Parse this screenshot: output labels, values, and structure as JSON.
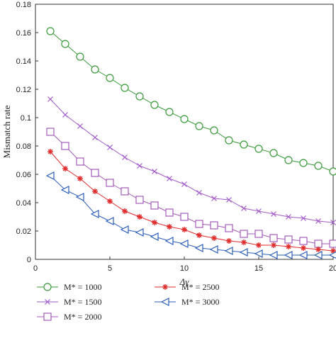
{
  "chart_data": {
    "type": "line",
    "xlabel": "Δγ",
    "ylabel": "Mismatch rate",
    "xlim": [
      0,
      20
    ],
    "ylim": [
      0,
      0.18
    ],
    "xticks": [
      0,
      5,
      10,
      15,
      20
    ],
    "yticks": [
      0,
      0.02,
      0.04,
      0.06,
      0.08,
      0.1,
      0.12,
      0.14,
      0.16,
      0.18
    ],
    "ytick_labels": [
      "0",
      "0.02",
      "0.04",
      "0.06",
      "0.08",
      "0.1",
      "0.12",
      "0.14",
      "0.16",
      "0.18"
    ],
    "grid": false,
    "legend_position": "bottom",
    "x": [
      1,
      2,
      3,
      4,
      5,
      6,
      7,
      8,
      9,
      10,
      11,
      12,
      13,
      14,
      15,
      16,
      17,
      18,
      19,
      20
    ],
    "series": [
      {
        "name": "M* = 1000",
        "marker": "circle",
        "color": "#3a9a3a",
        "values": [
          0.161,
          0.152,
          0.143,
          0.134,
          0.128,
          0.121,
          0.115,
          0.109,
          0.104,
          0.099,
          0.094,
          0.091,
          0.084,
          0.081,
          0.078,
          0.075,
          0.07,
          0.068,
          0.066,
          0.062
        ]
      },
      {
        "name": "M* = 1500",
        "marker": "x",
        "color": "#a25ac8",
        "values": [
          0.113,
          0.102,
          0.094,
          0.086,
          0.079,
          0.072,
          0.066,
          0.062,
          0.057,
          0.053,
          0.047,
          0.043,
          0.042,
          0.036,
          0.034,
          0.032,
          0.03,
          0.029,
          0.027,
          0.026
        ]
      },
      {
        "name": "M* = 2000",
        "marker": "square",
        "color": "#a45ab8",
        "values": [
          0.09,
          0.08,
          0.069,
          0.061,
          0.054,
          0.048,
          0.042,
          0.038,
          0.033,
          0.03,
          0.025,
          0.024,
          0.022,
          0.018,
          0.018,
          0.015,
          0.014,
          0.013,
          0.011,
          0.011
        ]
      },
      {
        "name": "M* = 2500",
        "marker": "star",
        "color": "#e02a2a",
        "values": [
          0.076,
          0.064,
          0.057,
          0.048,
          0.041,
          0.034,
          0.03,
          0.026,
          0.023,
          0.021,
          0.017,
          0.015,
          0.013,
          0.012,
          0.01,
          0.01,
          0.009,
          0.008,
          0.007,
          0.006
        ]
      },
      {
        "name": "M* = 3000",
        "marker": "triangle-left",
        "color": "#2b5fb8",
        "values": [
          0.059,
          0.049,
          0.044,
          0.032,
          0.027,
          0.021,
          0.019,
          0.016,
          0.013,
          0.011,
          0.008,
          0.007,
          0.006,
          0.005,
          0.004,
          0.003,
          0.003,
          0.003,
          0.003,
          0.003
        ]
      }
    ]
  }
}
